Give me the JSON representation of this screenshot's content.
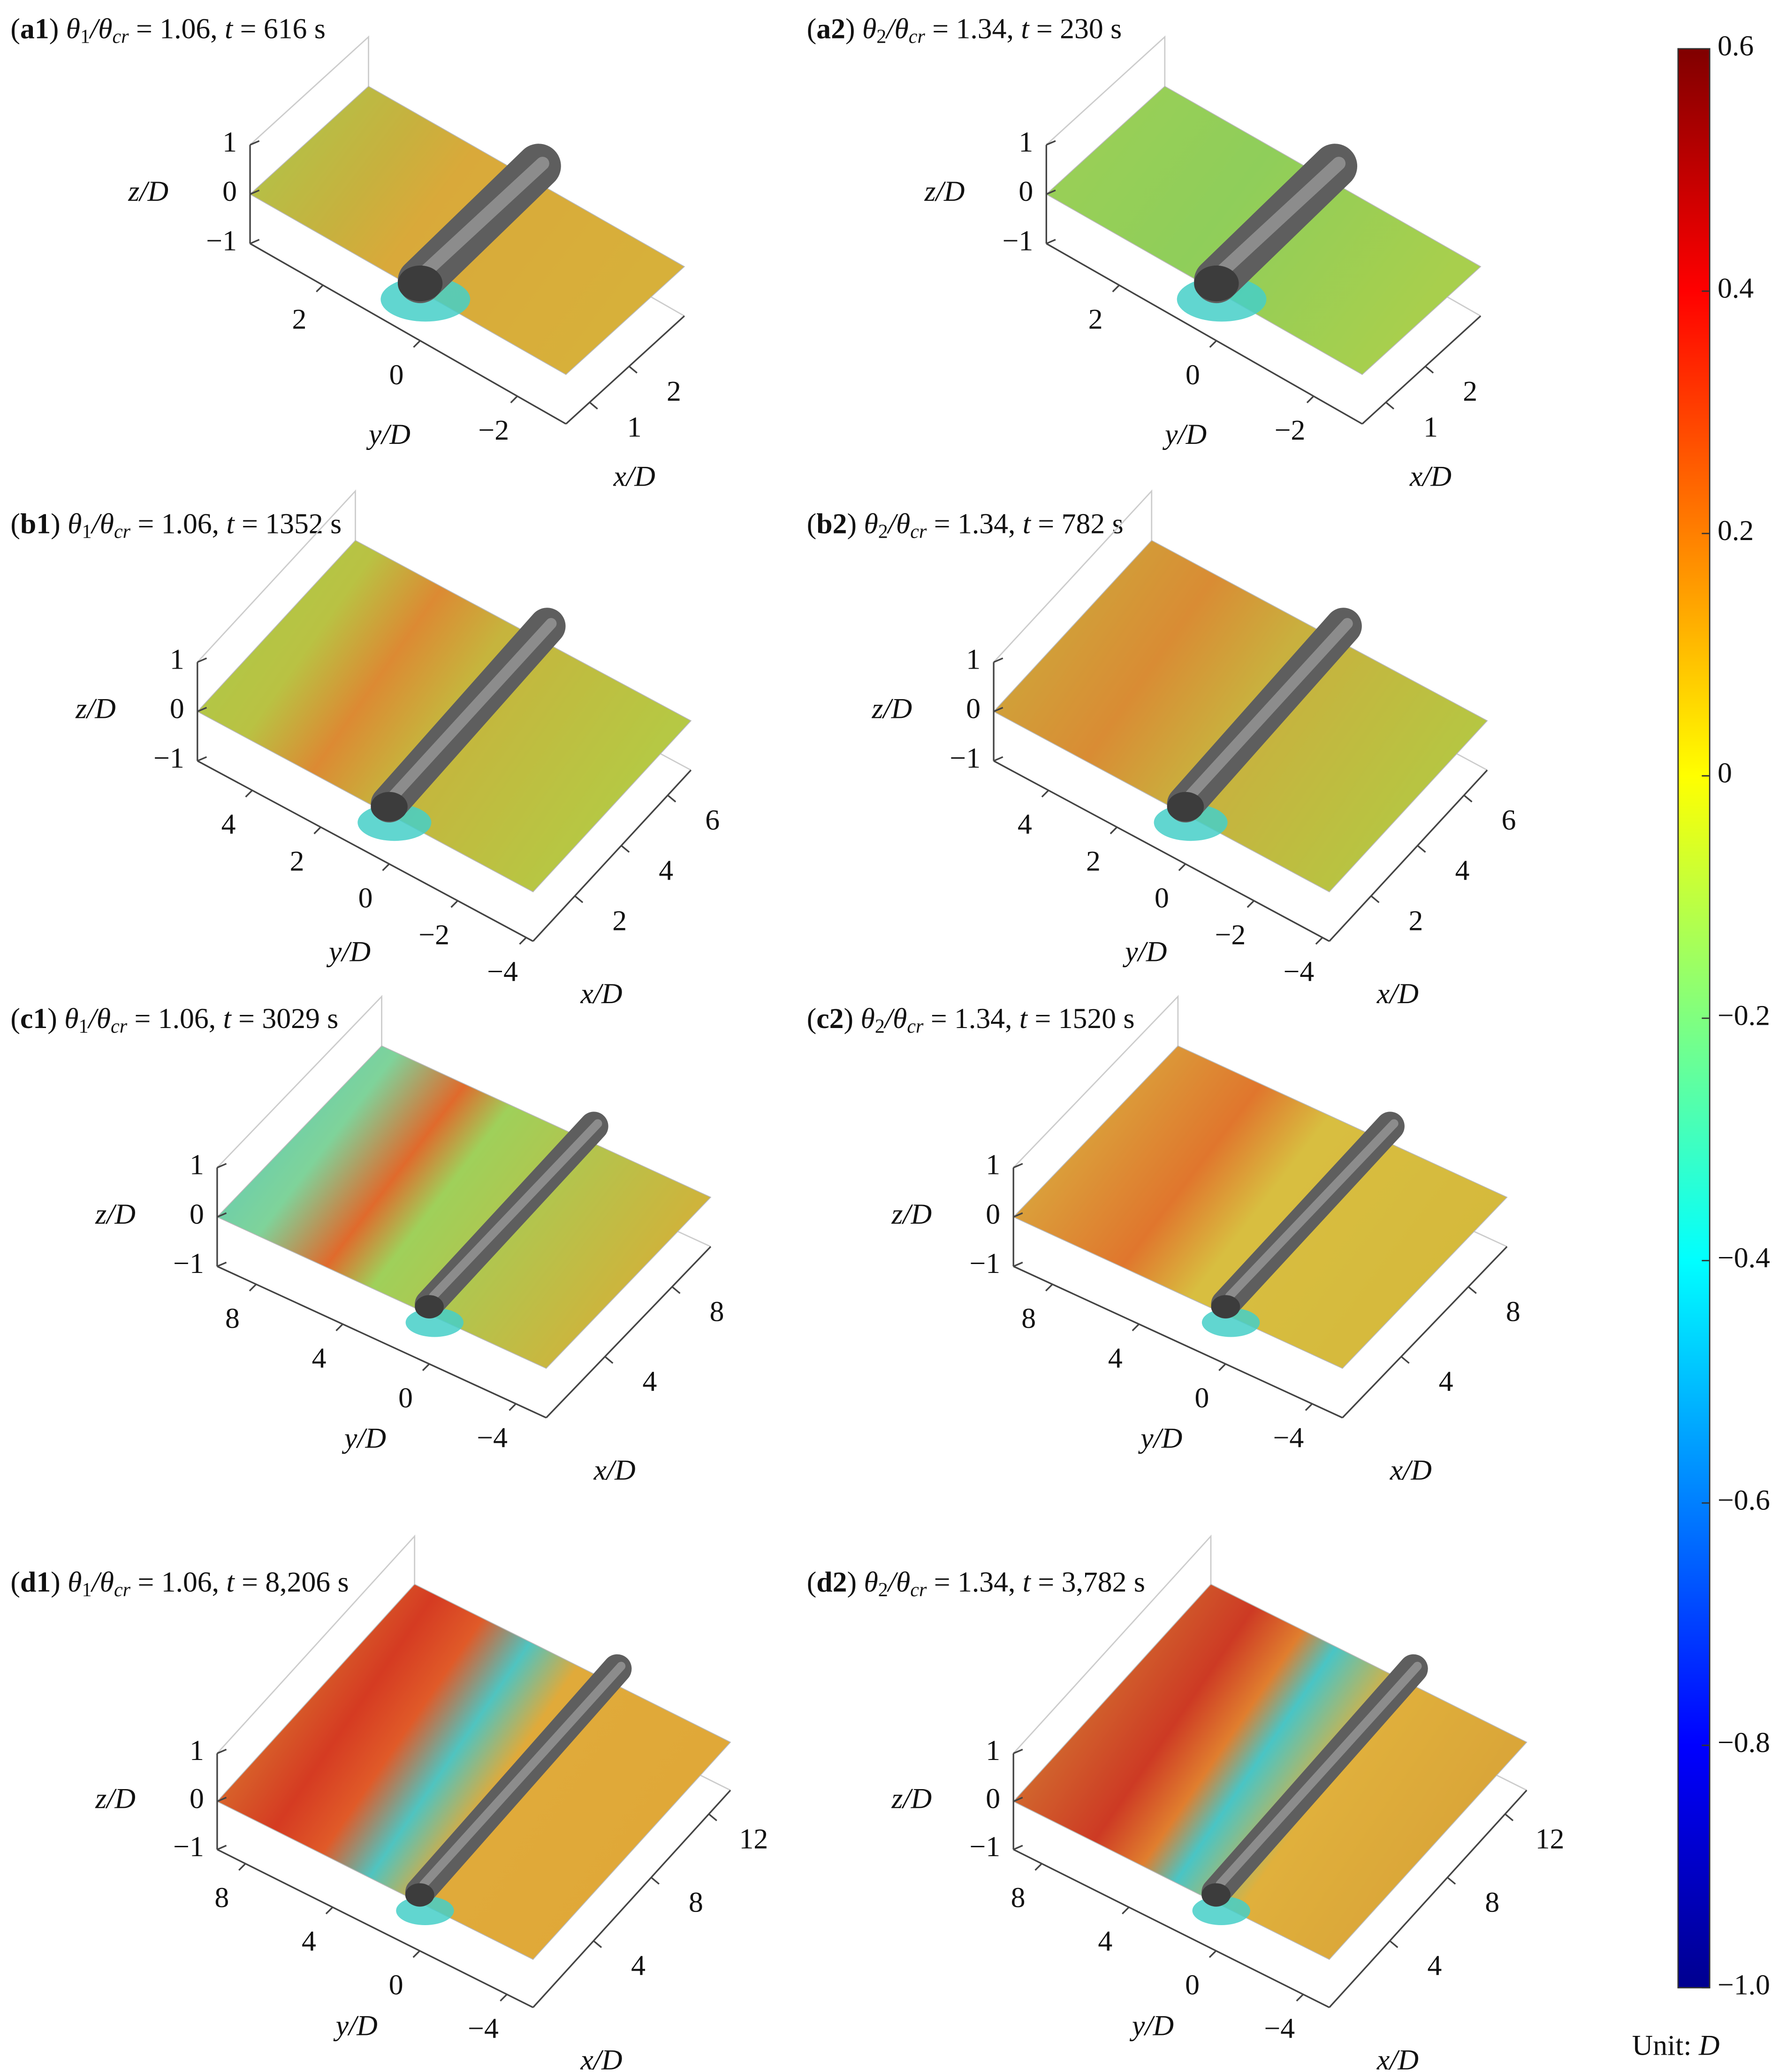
{
  "chart_data": [
    {
      "type": "surface",
      "title_parts": [
        "(",
        "a1",
        ") ",
        "θ",
        "1",
        "/θ",
        "cr",
        " = 1.06, ",
        "t",
        " = 616 s"
      ],
      "xlabel": "x/D",
      "ylabel": "y/D",
      "zlabel": "z/D",
      "xlim": [
        0.4,
        3.4
      ],
      "ylim": [
        -3,
        3.5
      ],
      "zlim": [
        -1,
        1
      ],
      "xticks": [
        2,
        1
      ],
      "yticks": [
        2,
        0,
        {
          "value": -2,
          "label": "−2"
        }
      ],
      "zticks": [
        1,
        0,
        {
          "value": -1,
          "label": "−1"
        }
      ]
    },
    {
      "type": "surface",
      "title_parts": [
        "(",
        "a2",
        ") ",
        "θ",
        "2",
        "/θ",
        "cr",
        " = 1.34, ",
        "t",
        " = 230 s"
      ],
      "xlabel": "x/D",
      "ylabel": "y/D",
      "zlabel": "z/D",
      "xlim": [
        0.4,
        3.4
      ],
      "ylim": [
        -3,
        3.5
      ],
      "zlim": [
        -1,
        1
      ],
      "xticks": [
        2,
        1
      ],
      "yticks": [
        2,
        0,
        {
          "value": -2,
          "label": "−2"
        }
      ],
      "zticks": [
        1,
        0,
        {
          "value": -1,
          "label": "−1"
        }
      ]
    },
    {
      "type": "surface",
      "title_parts": [
        "(",
        "b1",
        ") ",
        "θ",
        "1",
        "/θ",
        "cr",
        " = 1.06, ",
        "t",
        " = 1352 s"
      ],
      "xlabel": "x/D",
      "ylabel": "y/D",
      "zlabel": "z/D",
      "xlim": [
        0.2,
        7
      ],
      "ylim": [
        -4.2,
        5.6
      ],
      "zlim": [
        -1,
        1
      ],
      "xticks": [
        6,
        4,
        2
      ],
      "yticks": [
        4,
        2,
        0,
        {
          "value": -2,
          "label": "−2"
        },
        {
          "value": -4,
          "label": "−4"
        }
      ],
      "zticks": [
        1,
        0,
        {
          "value": -1,
          "label": "−1"
        }
      ]
    },
    {
      "type": "surface",
      "title_parts": [
        "(",
        "b2",
        ") ",
        "θ",
        "2",
        "/θ",
        "cr",
        " = 1.34, ",
        "t",
        " = 782 s"
      ],
      "xlabel": "x/D",
      "ylabel": "y/D",
      "zlabel": "z/D",
      "xlim": [
        0.2,
        7
      ],
      "ylim": [
        -4.2,
        5.6
      ],
      "zlim": [
        -1,
        1
      ],
      "xticks": [
        6,
        4,
        2
      ],
      "yticks": [
        4,
        2,
        0,
        {
          "value": -2,
          "label": "−2"
        },
        {
          "value": -4,
          "label": "−4"
        }
      ],
      "zticks": [
        1,
        0,
        {
          "value": -1,
          "label": "−1"
        }
      ]
    },
    {
      "type": "surface",
      "title_parts": [
        "(",
        "c1",
        ") ",
        "θ",
        "1",
        "/θ",
        "cr",
        " = 1.06, ",
        "t",
        " = 3029 s"
      ],
      "xlabel": "x/D",
      "ylabel": "y/D",
      "zlabel": "z/D",
      "xlim": [
        0.5,
        10.3
      ],
      "ylim": [
        -5.4,
        9.8
      ],
      "zlim": [
        -1,
        1
      ],
      "xticks": [
        8,
        4
      ],
      "yticks": [
        8,
        4,
        0,
        {
          "value": -4,
          "label": "−4"
        }
      ],
      "zticks": [
        1,
        0,
        {
          "value": -1,
          "label": "−1"
        }
      ]
    },
    {
      "type": "surface",
      "title_parts": [
        "(",
        "c2",
        ") ",
        "θ",
        "2",
        "/θ",
        "cr",
        " = 1.34, ",
        "t",
        " = 1520 s"
      ],
      "xlabel": "x/D",
      "ylabel": "y/D",
      "zlabel": "z/D",
      "xlim": [
        0.5,
        10.3
      ],
      "ylim": [
        -5.4,
        9.8
      ],
      "zlim": [
        -1,
        1
      ],
      "xticks": [
        8,
        4
      ],
      "yticks": [
        8,
        4,
        0,
        {
          "value": -4,
          "label": "−4"
        }
      ],
      "zticks": [
        1,
        0,
        {
          "value": -1,
          "label": "−1"
        }
      ]
    },
    {
      "type": "surface",
      "title_parts": [
        "(",
        "d1",
        ") ",
        "θ",
        "1",
        "/θ",
        "cr",
        " = 1.06, ",
        "t",
        " = 8,206 s"
      ],
      "xlabel": "x/D",
      "ylabel": "y/D",
      "zlabel": "z/D",
      "xlim": [
        -0.2,
        13.5
      ],
      "ylim": [
        -5.2,
        9.3
      ],
      "zlim": [
        -1,
        1
      ],
      "xticks": [
        12,
        8,
        4
      ],
      "yticks": [
        8,
        4,
        0,
        {
          "value": -4,
          "label": "−4"
        }
      ],
      "zticks": [
        1,
        0,
        {
          "value": -1,
          "label": "−1"
        }
      ]
    },
    {
      "type": "surface",
      "title_parts": [
        "(",
        "d2",
        ") ",
        "θ",
        "2",
        "/θ",
        "cr",
        " = 1.34, ",
        "t",
        " = 3,782 s"
      ],
      "xlabel": "x/D",
      "ylabel": "y/D",
      "zlabel": "z/D",
      "xlim": [
        -0.2,
        13.5
      ],
      "ylim": [
        -5.2,
        9.3
      ],
      "zlim": [
        -1,
        1
      ],
      "xticks": [
        12,
        8,
        4
      ],
      "yticks": [
        8,
        4,
        0,
        {
          "value": -4,
          "label": "−4"
        }
      ],
      "zticks": [
        1,
        0,
        {
          "value": -1,
          "label": "−1"
        }
      ]
    },
    {
      "type": "colorbar",
      "label_parts": [
        "Unit: ",
        "D"
      ],
      "ylim": [
        -1,
        0.6
      ],
      "yticks": [
        0.6,
        0.4,
        0.2,
        0,
        {
          "value": -0.2,
          "label": "−0.2"
        },
        {
          "value": -0.4,
          "label": "−0.4"
        },
        {
          "value": -0.6,
          "label": "−0.6"
        },
        {
          "value": -0.8,
          "label": "−0.8"
        },
        {
          "value": -1.0,
          "label": "−1.0"
        }
      ]
    }
  ]
}
